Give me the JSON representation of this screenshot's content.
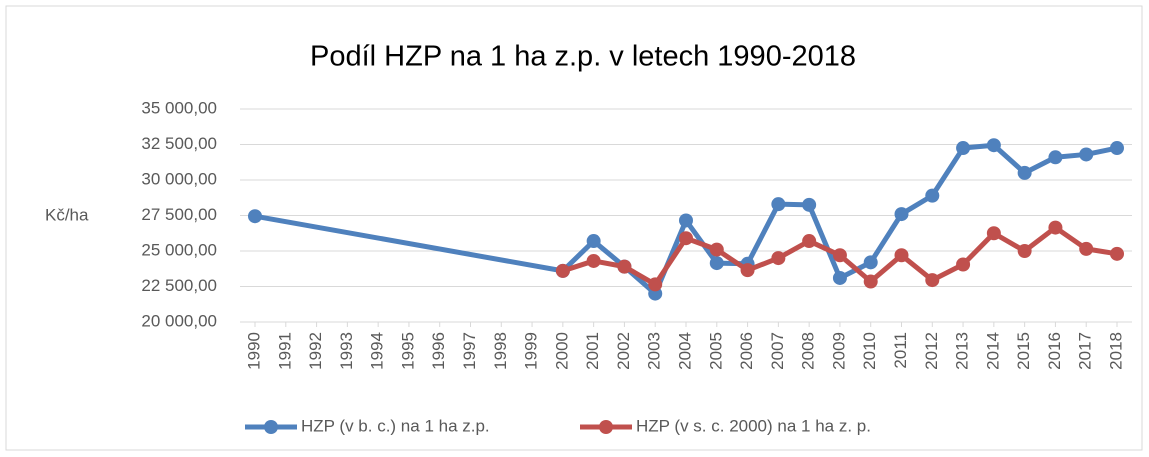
{
  "chart_data": {
    "type": "line",
    "title": "Podíl HZP na 1 ha z.p. v letech 1990-2018",
    "y_label": "Kč/ha",
    "x": [
      1990,
      2000,
      2001,
      2002,
      2003,
      2004,
      2005,
      2006,
      2007,
      2008,
      2009,
      2010,
      2011,
      2012,
      2013,
      2014,
      2015,
      2016,
      2017,
      2018
    ],
    "series": [
      {
        "name": "HZP (v b. c.) na 1 ha z.p.",
        "color": "#4f81bd",
        "values": [
          27450,
          23600,
          25700,
          23900,
          22000,
          27150,
          24150,
          24100,
          28300,
          28250,
          23100,
          24200,
          27600,
          28900,
          32250,
          32450,
          30500,
          31600,
          31800,
          32250
        ]
      },
      {
        "name": "HZP (v s. c. 2000) na 1 ha z. p.",
        "color": "#c0504d",
        "values": [
          null,
          23600,
          24300,
          23900,
          22650,
          25900,
          25100,
          23650,
          24500,
          25700,
          24700,
          22850,
          24700,
          22950,
          24050,
          26250,
          25000,
          26650,
          25150,
          24800
        ]
      }
    ],
    "xlim": [
      1990,
      2018
    ],
    "xticks": [
      1990,
      1991,
      1992,
      1993,
      1994,
      1995,
      1996,
      1997,
      1998,
      1999,
      2000,
      2001,
      2002,
      2003,
      2004,
      2005,
      2006,
      2007,
      2008,
      2009,
      2010,
      2011,
      2012,
      2013,
      2014,
      2015,
      2016,
      2017,
      2018
    ],
    "ylim": [
      20000,
      35000
    ],
    "yticks": [
      {
        "value": 20000,
        "label": "20 000,00"
      },
      {
        "value": 22500,
        "label": "22 500,00"
      },
      {
        "value": 25000,
        "label": "25 000,00"
      },
      {
        "value": 27500,
        "label": "27 500,00"
      },
      {
        "value": 30000,
        "label": "30 000,00"
      },
      {
        "value": 32500,
        "label": "32 500,00"
      },
      {
        "value": 35000,
        "label": "35 000,00"
      }
    ],
    "grid": true,
    "legend": "bottom"
  }
}
